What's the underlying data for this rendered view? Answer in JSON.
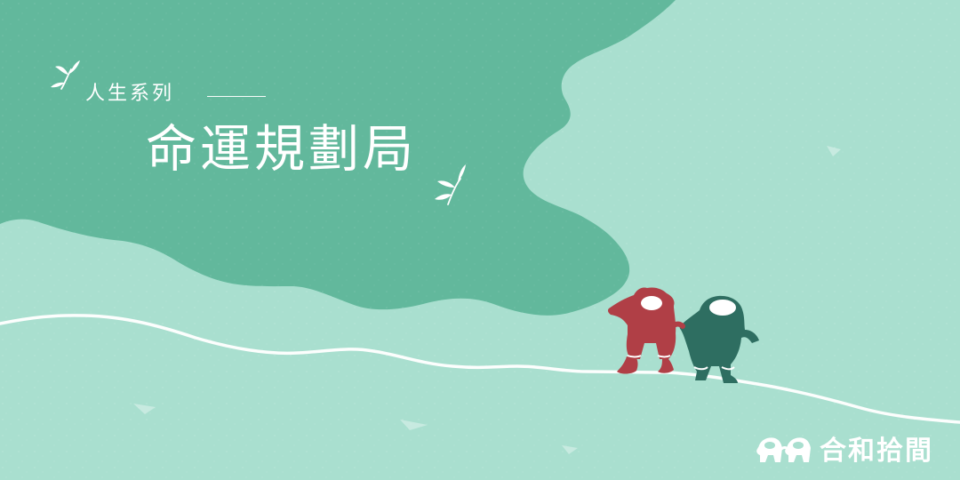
{
  "banner": {
    "series_title": "人生系列",
    "main_title": "命運規劃局",
    "logo_text": "合和拾間"
  },
  "colors": {
    "background_mint": "#a9dfcf",
    "dark_green": "#62b89c",
    "accent_red": "#b03f46",
    "accent_teal": "#2e6e61",
    "white": "#ffffff"
  },
  "icons": {
    "sprout_left": "sprout-icon",
    "sprout_right": "sprout-icon",
    "logo_mark": "twin-figures-logo-icon",
    "red_character": "red-character-icon",
    "teal_character": "teal-character-icon"
  }
}
